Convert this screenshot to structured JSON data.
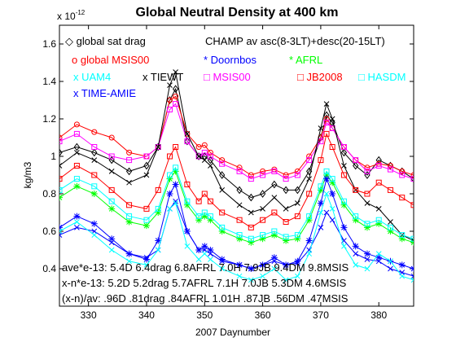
{
  "chart_data": {
    "type": "line",
    "title": "Global Neutral Density at 400 km",
    "xlabel": "2007 Daynumber",
    "ylabel": "kg/m3",
    "y_exponent_label": "x 10",
    "y_exponent_power": "-12",
    "xlim": [
      325,
      386
    ],
    "ylim": [
      0.2,
      1.7
    ],
    "x_ticks": [
      330,
      340,
      350,
      360,
      370,
      380
    ],
    "y_ticks": [
      0.4,
      0.6,
      0.8,
      1.0,
      1.2,
      1.4,
      1.6
    ],
    "x_tick_labels": [
      "330",
      "340",
      "350",
      "360",
      "370",
      "380"
    ],
    "y_tick_labels": [
      "0.4",
      "0.6",
      "0.8",
      "1",
      "1.2",
      "1.4",
      "1.6"
    ],
    "grid": false,
    "legend": [
      {
        "text": "◇ global sat drag",
        "color": "#000000"
      },
      {
        "text": "CHAMP av asc(8-3LT)+desc(20-15LT)",
        "color": "#000000"
      },
      {
        "text": "o global MSIS00",
        "color": "#ff0000"
      },
      {
        "text": "* Doornbos",
        "color": "#0000ff"
      },
      {
        "text": "* AFRL",
        "color": "#00ff00"
      },
      {
        "text": "x UAM4",
        "color": "#00ffff"
      },
      {
        "text": "x TIEWT",
        "color": "#000000"
      },
      {
        "text": "□ MSIS00",
        "color": "#ff00ff"
      },
      {
        "text": "□ JB2008",
        "color": "#ff0000"
      },
      {
        "text": "□ HASDM",
        "color": "#00ffff"
      },
      {
        "text": "x TIME-AMIE",
        "color": "#0000ff"
      }
    ],
    "annotations": [
      "ave*e-13: 5.4D 6.4drag 6.8AFRL 7.0H 7.9JB 9.4DM 9.8MSIS",
      "x-n*e-13: 5.2D 5.2drag 5.7AFRL 7.1H 7.0JB 5.3DM 4.6MSIS",
      "(x-n)/av: .96D .81drag .84AFRL 1.01H .87JB .56DM .47MSIS"
    ],
    "series": [
      {
        "name": "global sat drag",
        "color": "#000000",
        "marker": "diamond",
        "x": [
          325,
          328,
          331,
          334,
          337,
          340,
          342,
          344,
          345,
          347,
          349,
          350,
          351,
          353,
          356,
          358,
          360,
          362,
          364,
          366,
          368,
          370,
          371,
          372,
          374,
          376,
          378,
          380,
          382,
          384,
          386
        ],
        "y": [
          1.02,
          1.05,
          1.02,
          0.98,
          0.92,
          0.95,
          1.05,
          1.3,
          1.36,
          1.08,
          1.0,
          1.0,
          0.98,
          0.9,
          0.82,
          0.78,
          0.8,
          0.85,
          0.82,
          0.82,
          0.92,
          1.1,
          1.22,
          1.18,
          1.02,
          0.95,
          0.9,
          0.98,
          0.95,
          0.92,
          0.88
        ]
      },
      {
        "name": "global MSIS00",
        "color": "#ff0000",
        "marker": "circle",
        "x": [
          325,
          328,
          331,
          334,
          337,
          340,
          342,
          344,
          345,
          347,
          349,
          350,
          351,
          353,
          356,
          358,
          360,
          362,
          364,
          366,
          368,
          370,
          371,
          372,
          374,
          376,
          378,
          380,
          382,
          384,
          386
        ],
        "y": [
          1.1,
          1.17,
          1.13,
          1.1,
          1.02,
          1.0,
          1.05,
          1.3,
          1.32,
          1.12,
          1.05,
          1.06,
          1.02,
          0.98,
          0.94,
          0.9,
          0.92,
          0.93,
          0.9,
          0.92,
          1.0,
          1.1,
          1.2,
          1.15,
          1.05,
          0.98,
          0.94,
          0.96,
          0.95,
          0.92,
          0.9
        ]
      },
      {
        "name": "MSIS00",
        "color": "#ff00ff",
        "marker": "square",
        "x": [
          325,
          328,
          331,
          334,
          337,
          340,
          342,
          344,
          345,
          347,
          349,
          350,
          351,
          353,
          356,
          358,
          360,
          362,
          364,
          366,
          368,
          370,
          371,
          372,
          374,
          376,
          378,
          380,
          382,
          384,
          386
        ],
        "y": [
          1.08,
          1.12,
          1.05,
          1.0,
          0.98,
          1.0,
          1.05,
          1.25,
          1.28,
          1.08,
          1.0,
          1.02,
          1.0,
          0.96,
          0.92,
          0.88,
          0.9,
          0.92,
          0.88,
          0.9,
          0.98,
          1.08,
          1.18,
          1.15,
          1.05,
          0.98,
          0.92,
          0.95,
          0.93,
          0.9,
          0.88
        ]
      },
      {
        "name": "TIEWT",
        "color": "#000000",
        "marker": "x",
        "x": [
          325,
          328,
          331,
          334,
          337,
          340,
          342,
          344,
          345,
          347,
          349,
          350,
          351,
          353,
          356,
          358,
          360,
          362,
          364,
          366,
          368,
          370,
          371,
          372,
          374,
          376,
          378,
          380,
          382,
          384,
          386
        ],
        "y": [
          0.95,
          1.02,
          0.98,
          0.92,
          0.86,
          0.9,
          1.05,
          1.38,
          1.45,
          1.12,
          1.0,
          0.98,
          0.95,
          0.82,
          0.74,
          0.7,
          0.72,
          0.78,
          0.72,
          0.75,
          0.88,
          1.15,
          1.28,
          1.2,
          0.95,
          0.82,
          0.75,
          0.72,
          0.65,
          0.58,
          0.55
        ]
      },
      {
        "name": "JB2008",
        "color": "#ff0000",
        "marker": "square",
        "x": [
          325,
          328,
          331,
          334,
          337,
          340,
          342,
          344,
          345,
          347,
          349,
          350,
          351,
          353,
          356,
          358,
          360,
          362,
          364,
          366,
          368,
          370,
          371,
          372,
          374,
          376,
          378,
          380,
          382,
          384,
          386
        ],
        "y": [
          0.88,
          0.95,
          0.9,
          0.82,
          0.74,
          0.72,
          0.82,
          1.0,
          1.05,
          0.85,
          0.76,
          0.8,
          0.76,
          0.7,
          0.66,
          0.62,
          0.66,
          0.7,
          0.65,
          0.68,
          0.8,
          0.98,
          1.12,
          1.05,
          0.9,
          0.82,
          0.8,
          0.86,
          0.82,
          0.78,
          0.74
        ]
      },
      {
        "name": "AFRL",
        "color": "#00ff00",
        "marker": "star",
        "x": [
          325,
          328,
          331,
          334,
          337,
          340,
          342,
          344,
          345,
          347,
          349,
          350,
          351,
          353,
          356,
          358,
          360,
          362,
          364,
          366,
          368,
          370,
          371,
          372,
          374,
          376,
          378,
          380,
          382,
          384,
          386
        ],
        "y": [
          0.78,
          0.84,
          0.8,
          0.72,
          0.65,
          0.63,
          0.7,
          0.88,
          0.92,
          0.74,
          0.66,
          0.68,
          0.66,
          0.6,
          0.56,
          0.54,
          0.56,
          0.58,
          0.55,
          0.56,
          0.66,
          0.82,
          0.9,
          0.86,
          0.74,
          0.66,
          0.62,
          0.64,
          0.6,
          0.56,
          0.54
        ]
      },
      {
        "name": "HASDM",
        "color": "#00ffff",
        "marker": "square",
        "x": [
          325,
          328,
          331,
          334,
          337,
          340,
          342,
          344,
          345,
          347,
          349,
          350,
          351,
          353,
          356,
          358,
          360,
          362,
          364,
          366,
          368,
          370,
          371,
          372,
          374,
          376,
          378,
          380,
          382,
          384,
          386
        ],
        "y": [
          0.82,
          0.88,
          0.84,
          0.76,
          0.68,
          0.66,
          0.72,
          0.9,
          0.94,
          0.76,
          0.68,
          0.7,
          0.68,
          0.62,
          0.58,
          0.56,
          0.58,
          0.6,
          0.57,
          0.58,
          0.68,
          0.84,
          0.92,
          0.88,
          0.76,
          0.68,
          0.64,
          0.66,
          0.62,
          0.58,
          0.56
        ]
      },
      {
        "name": "TIME-AMIE",
        "color": "#0000ff",
        "marker": "x",
        "x": [
          325,
          328,
          331,
          334,
          337,
          340,
          342,
          344,
          345,
          347,
          349,
          350,
          351,
          353,
          356,
          358,
          360,
          362,
          364,
          366,
          368,
          370,
          371,
          372,
          374,
          376,
          378,
          380,
          382,
          384,
          386
        ],
        "y": [
          0.58,
          0.62,
          0.6,
          0.54,
          0.48,
          0.46,
          0.5,
          0.72,
          0.76,
          0.6,
          0.5,
          0.5,
          0.48,
          0.44,
          0.42,
          0.4,
          0.42,
          0.44,
          0.42,
          0.43,
          0.5,
          0.62,
          0.7,
          0.66,
          0.55,
          0.48,
          0.45,
          0.44,
          0.4,
          0.38,
          0.36
        ]
      },
      {
        "name": "Doornbos",
        "color": "#0000ff",
        "marker": "star",
        "x": [
          325,
          328,
          331,
          334,
          337,
          340,
          342,
          344,
          345,
          347,
          349,
          350,
          351,
          353,
          356,
          358,
          360,
          362,
          364,
          366,
          368,
          370,
          371,
          372,
          374,
          376,
          378,
          380,
          382,
          384,
          386
        ],
        "y": [
          0.62,
          0.68,
          0.64,
          0.56,
          0.48,
          0.45,
          0.55,
          0.8,
          0.85,
          0.6,
          0.5,
          0.52,
          0.5,
          0.45,
          0.42,
          0.4,
          0.42,
          0.46,
          0.42,
          0.44,
          0.55,
          0.75,
          0.88,
          0.8,
          0.62,
          0.52,
          0.48,
          0.46,
          0.44,
          0.42,
          0.4
        ]
      },
      {
        "name": "UAM4",
        "color": "#00ffff",
        "marker": "x",
        "x": [
          325,
          328,
          331,
          334,
          337,
          340,
          342,
          344,
          345,
          347,
          349,
          350,
          351,
          353,
          356,
          358,
          360,
          362,
          364,
          366,
          368,
          370,
          371,
          372,
          374,
          376,
          378,
          380,
          382,
          384,
          386
        ],
        "y": [
          0.6,
          0.65,
          0.58,
          0.5,
          0.44,
          0.42,
          0.5,
          0.72,
          0.75,
          0.52,
          0.45,
          0.48,
          0.45,
          0.4,
          0.36,
          0.34,
          0.36,
          0.4,
          0.34,
          0.36,
          0.48,
          0.7,
          0.8,
          0.72,
          0.52,
          0.42,
          0.4,
          0.48,
          0.44,
          0.36,
          0.34
        ]
      }
    ]
  }
}
